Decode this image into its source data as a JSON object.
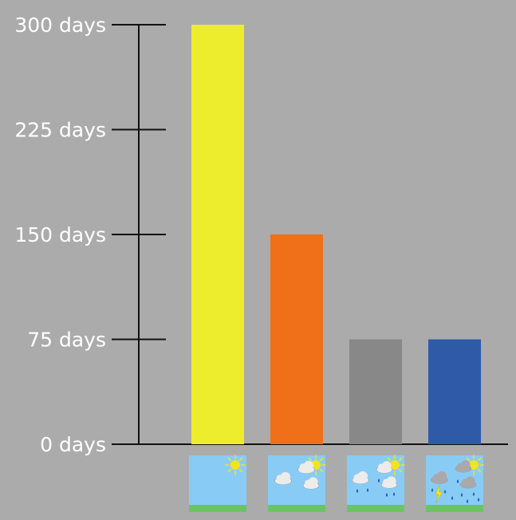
{
  "chart_data": {
    "type": "bar",
    "categories": [
      "sunny",
      "partly cloudy",
      "rainy",
      "stormy"
    ],
    "values": [
      300,
      150,
      75,
      75
    ],
    "bar_colors": [
      "#eded2e",
      "#f06f19",
      "#888888",
      "#2f5aa8"
    ],
    "ylim": [
      0,
      300
    ],
    "yticks": [
      0,
      75,
      150,
      225,
      300
    ],
    "ytick_labels": [
      "0 days",
      "75 days",
      "150 days",
      "225 days",
      "300 days"
    ],
    "category_icons": [
      "sun-icon",
      "sun-cloud-icon",
      "rain-cloud-icon",
      "thunderstorm-icon"
    ],
    "title": "",
    "xlabel": "",
    "ylabel": "",
    "grid": false,
    "legend": "none",
    "colors": {
      "background": "#ababab",
      "axis": "#111111",
      "sky": "#88ccf6",
      "grass": "#6cc366",
      "sun": "#f5e31e",
      "cloud": "#ececec",
      "storm_cloud": "#a9a9a9",
      "rain": "#1f5fbf",
      "lightning": "#f5e31e"
    }
  }
}
